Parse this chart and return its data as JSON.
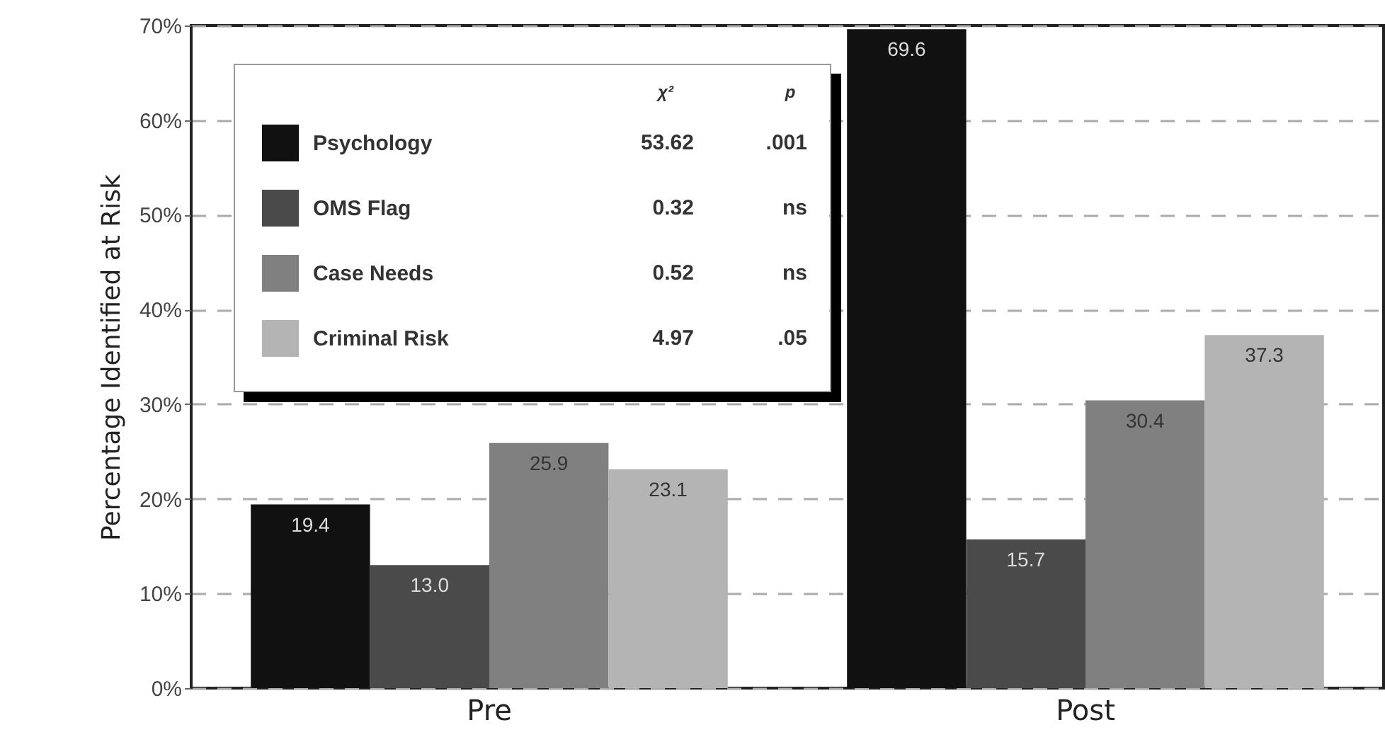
{
  "chart_data": {
    "type": "bar",
    "ylabel": "Percentage Identified at Risk",
    "categories": [
      "Pre",
      "Post"
    ],
    "series": [
      {
        "name": "Psychology",
        "color": "#111111",
        "values": [
          19.4,
          69.6
        ],
        "value_labels": [
          "19.4",
          "69.6"
        ]
      },
      {
        "name": "OMS Flag",
        "color": "#4a4a4a",
        "values": [
          13.0,
          15.7
        ],
        "value_labels": [
          "13.0",
          "15.7"
        ]
      },
      {
        "name": "Case Needs",
        "color": "#808080",
        "values": [
          25.9,
          30.4
        ],
        "value_labels": [
          "25.9",
          "30.4"
        ]
      },
      {
        "name": "Criminal Risk",
        "color": "#b4b4b4",
        "values": [
          23.1,
          37.3
        ],
        "value_labels": [
          "23.1",
          "37.3"
        ]
      }
    ],
    "ylim": [
      0,
      70
    ],
    "yticks": [
      {
        "value": 0,
        "label": "0%"
      },
      {
        "value": 10,
        "label": "10%"
      },
      {
        "value": 20,
        "label": "20%"
      },
      {
        "value": 30,
        "label": "30%"
      },
      {
        "value": 40,
        "label": "40%"
      },
      {
        "value": 50,
        "label": "50%"
      },
      {
        "value": 60,
        "label": "60%"
      },
      {
        "value": 70,
        "label": "70%"
      }
    ],
    "grid": "y",
    "legend": "top left",
    "annotations": [
      "χ²",
      "p",
      "53.62",
      ".001",
      "0.32",
      "ns",
      "0.52",
      "ns",
      "4.97",
      ".05"
    ]
  }
}
